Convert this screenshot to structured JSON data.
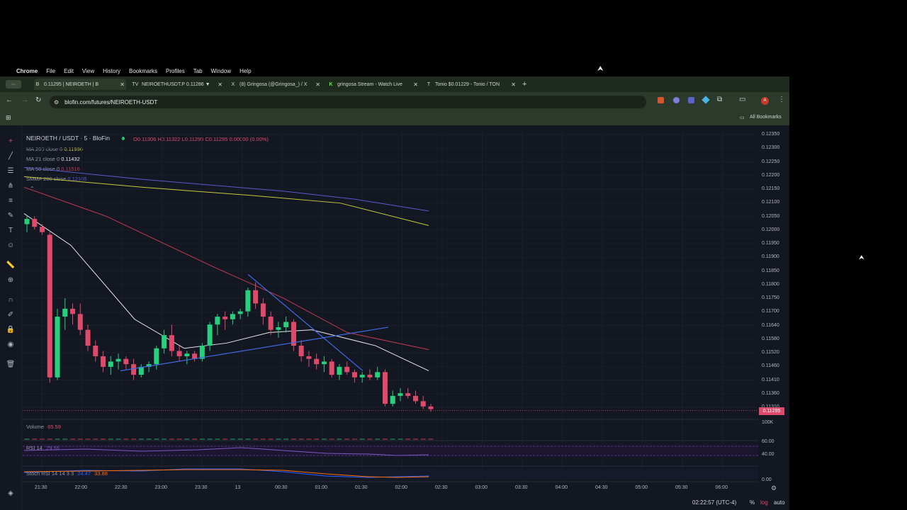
{
  "menubar": {
    "app": "Chrome",
    "items": [
      "File",
      "Edit",
      "View",
      "History",
      "Bookmarks",
      "Profiles",
      "Tab",
      "Window",
      "Help"
    ]
  },
  "tabs": [
    {
      "icon": "B",
      "label": "0.11295 | NEIROETH | B",
      "active": true
    },
    {
      "icon": "TV",
      "label": "NEIROETHUSDT.P 0.11286 ▼",
      "active": false
    },
    {
      "icon": "X",
      "label": "(8) Gringosa (@Gringosa_) / X",
      "active": false
    },
    {
      "icon": "K",
      "label": "gringosa Stream - Watch Live",
      "active": false
    },
    {
      "icon": "T",
      "label": "Tonio $0.01229 - Tonio / TON",
      "active": false
    }
  ],
  "address": {
    "url": "blofin.com/futures/NEIROETH-USDT"
  },
  "bookmarks": {
    "all_label": "All Bookmarks"
  },
  "chart": {
    "symbol": "NEIROETH / USDT · 5 · BloFin",
    "ohlc": {
      "o": "O0.11306",
      "h": "H0.11322",
      "l": "L0.11295",
      "c": "C0.11295 0.00000 (0.00%)"
    },
    "indicators": [
      {
        "name": "MA 200 close 0",
        "value": "0.11996",
        "color": "#c9c93a"
      },
      {
        "name": "MA 21 close 0",
        "value": "0.11432",
        "color": "#e8e8e8"
      },
      {
        "name": "MA 50 close 0",
        "value": "0.11516",
        "color": "#c23b4f"
      },
      {
        "name": "SMMA 200 close",
        "value": "0.12105",
        "color": "#5a5acb"
      }
    ],
    "price_labels": [
      "0.12350",
      "0.12300",
      "0.12250",
      "0.12200",
      "0.12150",
      "0.12100",
      "0.12050",
      "0.12000",
      "0.11950",
      "0.11900",
      "0.11850",
      "0.11800",
      "0.11750",
      "0.11700",
      "0.11640",
      "0.11580",
      "0.11520",
      "0.11460",
      "0.11410",
      "0.11360",
      "0.11310"
    ],
    "current_price": "0.11295",
    "volume_label": "Volume",
    "volume_value": "65.59",
    "volume_axis": "100K",
    "rsi_label": "RSI 14",
    "rsi_value": "29.55",
    "rsi_axis": [
      "60.00",
      "40.00"
    ],
    "stoch_label": "Stoch RSI 14 14 3 3",
    "stoch_k": "24.47",
    "stoch_d": "33.88",
    "stoch_axis": "0.00",
    "time_labels": [
      "21:30",
      "22:00",
      "22:30",
      "23:00",
      "23:30",
      "13",
      "00:30",
      "01:00",
      "01:30",
      "02:00",
      "02:30",
      "03:00",
      "03:30",
      "04:00",
      "04:30",
      "05:00",
      "05:30",
      "06:00"
    ],
    "clock": "02:22:57 (UTC-4)",
    "bottom_opts": [
      "%",
      "log",
      "auto"
    ],
    "colors": {
      "up": "#26d07c",
      "down": "#e04a6a",
      "bg": "#131722"
    }
  },
  "chart_data": {
    "type": "candlestick",
    "series": [
      {
        "name": "NEIROETH / USDT",
        "ohlc": [
          [
            0.12,
            0.1203,
            0.1197,
            0.1202
          ],
          [
            0.1202,
            0.1203,
            0.1198,
            0.1199
          ],
          [
            0.1199,
            0.12,
            0.1196,
            0.1197
          ],
          [
            0.1196,
            0.1197,
            0.114,
            0.1142
          ],
          [
            0.1142,
            0.1168,
            0.1141,
            0.1165
          ],
          [
            0.1165,
            0.1172,
            0.116,
            0.1168
          ],
          [
            0.1168,
            0.117,
            0.1162,
            0.1166
          ],
          [
            0.1166,
            0.117,
            0.1158,
            0.116
          ],
          [
            0.116,
            0.1162,
            0.1152,
            0.1154
          ],
          [
            0.1154,
            0.1156,
            0.1148,
            0.115
          ],
          [
            0.115,
            0.1152,
            0.1144,
            0.1146
          ],
          [
            0.1146,
            0.115,
            0.1143,
            0.1148
          ],
          [
            0.1148,
            0.1151,
            0.1145,
            0.1149
          ],
          [
            0.1149,
            0.115,
            0.1145,
            0.1147
          ],
          [
            0.1147,
            0.1149,
            0.1141,
            0.1143
          ],
          [
            0.1143,
            0.1147,
            0.1142,
            0.1146
          ],
          [
            0.1146,
            0.1148,
            0.1144,
            0.1147
          ],
          [
            0.1147,
            0.1154,
            0.1145,
            0.1153
          ],
          [
            0.1153,
            0.116,
            0.1151,
            0.1158
          ],
          [
            0.1158,
            0.1162,
            0.115,
            0.1152
          ],
          [
            0.1152,
            0.1154,
            0.1148,
            0.115
          ],
          [
            0.115,
            0.1152,
            0.1147,
            0.1151
          ],
          [
            0.1151,
            0.1152,
            0.1148,
            0.1149
          ],
          [
            0.1149,
            0.1155,
            0.1148,
            0.1154
          ],
          [
            0.1154,
            0.1163,
            0.1152,
            0.1162
          ],
          [
            0.1162,
            0.1166,
            0.1158,
            0.1165
          ],
          [
            0.1165,
            0.1167,
            0.116,
            0.1164
          ],
          [
            0.1164,
            0.1167,
            0.1162,
            0.1166
          ],
          [
            0.1166,
            0.1168,
            0.1164,
            0.1167
          ],
          [
            0.1167,
            0.1176,
            0.1165,
            0.1175
          ],
          [
            0.1175,
            0.1178,
            0.1168,
            0.117
          ],
          [
            0.117,
            0.1172,
            0.1162,
            0.1165
          ],
          [
            0.1165,
            0.1167,
            0.1158,
            0.116
          ],
          [
            0.116,
            0.1163,
            0.1157,
            0.1161
          ],
          [
            0.1161,
            0.1165,
            0.1159,
            0.1163
          ],
          [
            0.1163,
            0.1164,
            0.1152,
            0.1154
          ],
          [
            0.1154,
            0.1156,
            0.1148,
            0.115
          ],
          [
            0.115,
            0.1152,
            0.1146,
            0.1149
          ],
          [
            0.1149,
            0.1151,
            0.1145,
            0.1147
          ],
          [
            0.1147,
            0.115,
            0.1144,
            0.1148
          ],
          [
            0.1148,
            0.1149,
            0.1142,
            0.1143
          ],
          [
            0.1143,
            0.1147,
            0.1141,
            0.1146
          ],
          [
            0.1146,
            0.1148,
            0.1143,
            0.1144
          ],
          [
            0.1144,
            0.1145,
            0.114,
            0.1142
          ],
          [
            0.1142,
            0.1144,
            0.114,
            0.1143
          ],
          [
            0.1143,
            0.1145,
            0.1141,
            0.1142
          ],
          [
            0.1142,
            0.1146,
            0.1141,
            0.1144
          ],
          [
            0.1144,
            0.1145,
            0.1131,
            0.1132
          ],
          [
            0.1132,
            0.1137,
            0.1131,
            0.1135
          ],
          [
            0.1135,
            0.1138,
            0.1133,
            0.1136
          ],
          [
            0.1136,
            0.1138,
            0.1134,
            0.1135
          ],
          [
            0.1135,
            0.1137,
            0.1132,
            0.1133
          ],
          [
            0.1133,
            0.1135,
            0.113,
            0.1131
          ],
          [
            0.1131,
            0.1132,
            0.1129,
            0.113
          ]
        ]
      }
    ],
    "overlays": [
      {
        "name": "MA 200",
        "color": "#c9c93a"
      },
      {
        "name": "SMMA 200",
        "color": "#5a5acb"
      },
      {
        "name": "MA 50",
        "color": "#c23b4f"
      },
      {
        "name": "MA 21",
        "color": "#e8e8e8"
      }
    ],
    "ylim": [
      0.1128,
      0.1235
    ]
  }
}
